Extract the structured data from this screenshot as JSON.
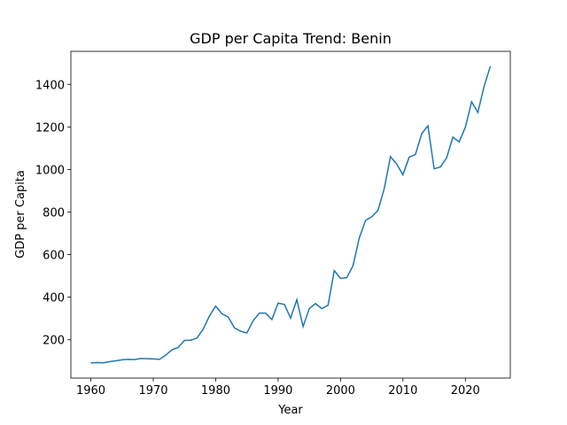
{
  "chart_data": {
    "type": "line",
    "title": "GDP per Capita Trend: Benin",
    "x_label": "Year",
    "y_label": "GDP per Capita",
    "x": [
      1960,
      1961,
      1962,
      1963,
      1964,
      1965,
      1966,
      1967,
      1968,
      1969,
      1970,
      1971,
      1972,
      1973,
      1974,
      1975,
      1976,
      1977,
      1978,
      1979,
      1980,
      1981,
      1982,
      1983,
      1984,
      1985,
      1986,
      1987,
      1988,
      1989,
      1990,
      1991,
      1992,
      1993,
      1994,
      1995,
      1996,
      1997,
      1998,
      1999,
      2000,
      2001,
      2002,
      2003,
      2004,
      2005,
      2006,
      2007,
      2008,
      2009,
      2010,
      2011,
      2012,
      2013,
      2014,
      2015,
      2016,
      2017,
      2018,
      2019,
      2020,
      2021,
      2022,
      2023,
      2024
    ],
    "series": [
      {
        "color": "#1f77b4",
        "values": [
          91,
          93,
          92,
          97,
          101,
          106,
          108,
          107,
          112,
          111,
          110,
          108,
          128,
          153,
          164,
          197,
          198,
          208,
          250,
          312,
          358,
          322,
          307,
          256,
          240,
          232,
          289,
          325,
          325,
          295,
          372,
          366,
          302,
          388,
          262,
          347,
          370,
          346,
          362,
          525,
          488,
          492,
          548,
          678,
          760,
          778,
          808,
          910,
          1060,
          1025,
          975,
          1058,
          1070,
          1168,
          1205,
          1003,
          1012,
          1055,
          1152,
          1130,
          1198,
          1318,
          1268,
          1390,
          1485
        ]
      }
    ],
    "xlim": [
      1956.8,
      2027.2
    ],
    "ylim": [
      20,
      1555
    ],
    "xticks": [
      1960,
      1970,
      1980,
      1990,
      2000,
      2010,
      2020
    ],
    "yticks": [
      200,
      400,
      600,
      800,
      1000,
      1200,
      1400
    ]
  }
}
